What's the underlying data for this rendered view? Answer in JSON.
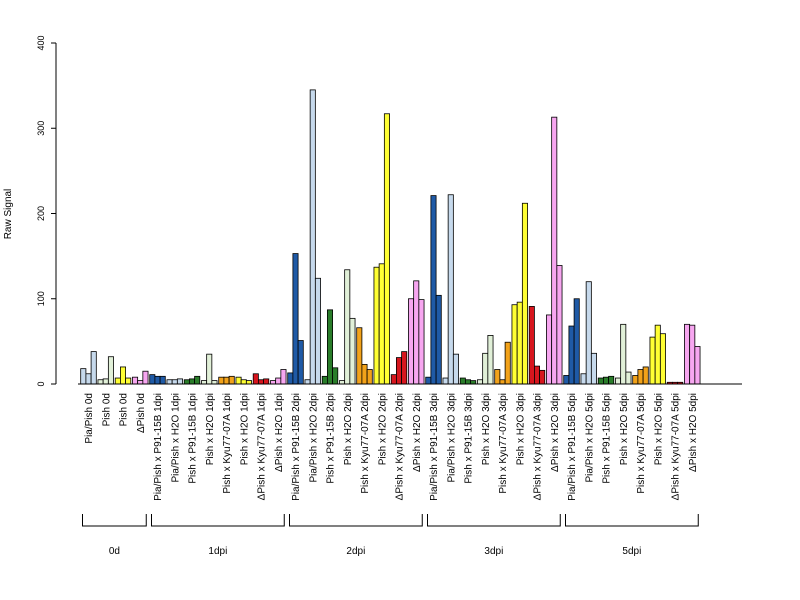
{
  "chart_data": {
    "type": "bar",
    "ylabel": "Raw Signal",
    "ylim": [
      0,
      400
    ],
    "yticks": [
      0,
      100,
      200,
      300,
      400
    ],
    "grid": false,
    "legend": "none",
    "categories": [
      "Pia/Pish 0d",
      "Pish 0d",
      "Pish 0d",
      "ΔPish 0d",
      "Pia/Pish x P91-15B 1dpi",
      "Pia/Pish x H2O 1dpi",
      "Pish x P91-15B 1dpi",
      "Pish x H2O 1dpi",
      "Pish x Kyu77-07A 1dpi",
      "Pish x H2O 1dpi",
      "ΔPish x Kyu77-07A 1dpi",
      "ΔPish x H2O 1dpi",
      "Pia/Pish x P91-15B 2dpi",
      "Pia/Pish x H2O 2dpi",
      "Pish x P91-15B 2dpi",
      "Pish x H2O 2dpi",
      "Pish x Kyu77-07A 2dpi",
      "Pish x H2O 2dpi",
      "ΔPish x Kyu77-07A 2dpi",
      "ΔPish x H2O 2dpi",
      "Pia/Pish x P91-15B 3dpi",
      "Pia/Pish x H2O 3dpi",
      "Pish x P91-15B 3dpi",
      "Pish x H2O 3dpi",
      "Pish x Kyu77-07A 3dpi",
      "Pish x H2O 3dpi",
      "ΔPish x Kyu77-07A 3dpi",
      "ΔPish x H2O 3dpi",
      "Pia/Pish x P91-15B 5dpi",
      "Pia/Pish x H2O 5dpi",
      "Pish x P91-15B 5dpi",
      "Pish x H2O 5dpi",
      "Pish x Kyu77-07A 5dpi",
      "Pish x H2O 5dpi",
      "ΔPish x Kyu77-07A 5dpi",
      "ΔPish x H2O 5dpi"
    ],
    "colors": [
      "#c6d9ec",
      "#e1f0d8",
      "#ffff33",
      "#f7a6f0",
      "#1f5aa6",
      "#c6d9ec",
      "#2a7d2a",
      "#e1f0d8",
      "#f2a21a",
      "#ffff33",
      "#d7161e",
      "#f7a6f0",
      "#1f5aa6",
      "#c6d9ec",
      "#2a7d2a",
      "#e1f0d8",
      "#f2a21a",
      "#ffff33",
      "#d7161e",
      "#f7a6f0",
      "#1f5aa6",
      "#c6d9ec",
      "#2a7d2a",
      "#e1f0d8",
      "#f2a21a",
      "#ffff33",
      "#d7161e",
      "#f7a6f0",
      "#1f5aa6",
      "#c6d9ec",
      "#2a7d2a",
      "#e1f0d8",
      "#f2a21a",
      "#ffff33",
      "#d7161e",
      "#f7a6f0"
    ],
    "values": [
      [
        18,
        12,
        38
      ],
      [
        5,
        6,
        32
      ],
      [
        7,
        20,
        7
      ],
      [
        8,
        4,
        15
      ],
      [
        11,
        9,
        9
      ],
      [
        5,
        5,
        6
      ],
      [
        5,
        6,
        9
      ],
      [
        4,
        35,
        4
      ],
      [
        8,
        8,
        9
      ],
      [
        8,
        5,
        4
      ],
      [
        12,
        5,
        6
      ],
      [
        4,
        7,
        17
      ],
      [
        13,
        153,
        51
      ],
      [
        5,
        345,
        124
      ],
      [
        9,
        87,
        19
      ],
      [
        4,
        134,
        77
      ],
      [
        66,
        23,
        17
      ],
      [
        137,
        141,
        317
      ],
      [
        11,
        31,
        38
      ],
      [
        100,
        121,
        99
      ],
      [
        8,
        221,
        104
      ],
      [
        7,
        222,
        35
      ],
      [
        7,
        5,
        4
      ],
      [
        5,
        36,
        57
      ],
      [
        17,
        5,
        49
      ],
      [
        93,
        96,
        212
      ],
      [
        91,
        21,
        16
      ],
      [
        81,
        313,
        139
      ],
      [
        10,
        68,
        100
      ],
      [
        12,
        120,
        36
      ],
      [
        7,
        8,
        9
      ],
      [
        7,
        70,
        14
      ],
      [
        10,
        17,
        20
      ],
      [
        55,
        69,
        59
      ],
      [
        2,
        2,
        2
      ],
      [
        70,
        69,
        44
      ]
    ],
    "groups": [
      {
        "label": "0d",
        "from": 0,
        "to": 3
      },
      {
        "label": "1dpi",
        "from": 4,
        "to": 11
      },
      {
        "label": "2dpi",
        "from": 12,
        "to": 19
      },
      {
        "label": "3dpi",
        "from": 20,
        "to": 27
      },
      {
        "label": "5dpi",
        "from": 28,
        "to": 35
      }
    ]
  }
}
